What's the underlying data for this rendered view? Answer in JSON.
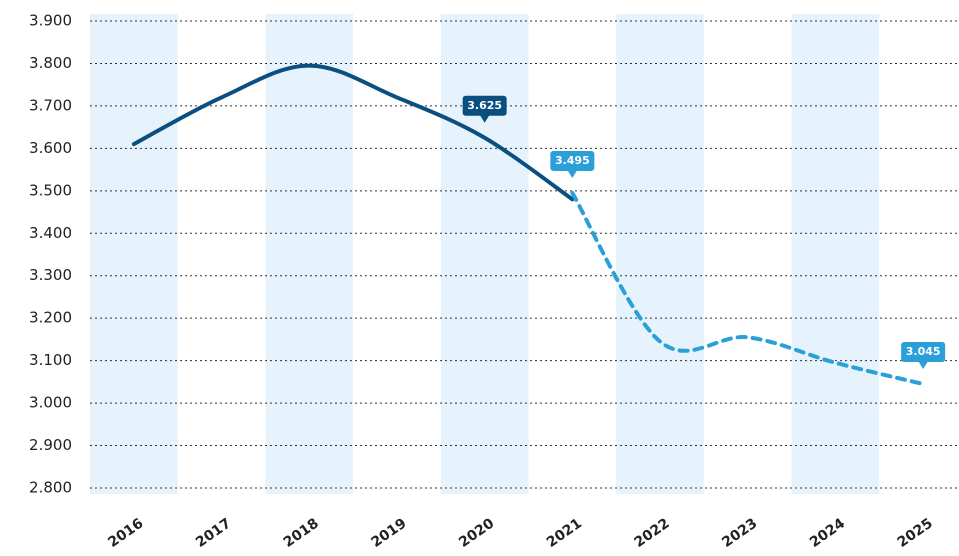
{
  "chart_data": {
    "type": "line",
    "categories": [
      "2016",
      "2017",
      "2018",
      "2019",
      "2020",
      "2021",
      "2022",
      "2023",
      "2024",
      "2025"
    ],
    "series": [
      {
        "color": "#0b4f80",
        "dashed": false,
        "values": [
          3610,
          3720,
          3795,
          3720,
          3625,
          3480,
          null,
          null,
          null,
          null
        ],
        "value_labels": [
          null,
          null,
          null,
          null,
          "3.625",
          null,
          null,
          null,
          null,
          null
        ]
      },
      {
        "color": "#2a9fd8",
        "dashed": true,
        "values": [
          null,
          null,
          null,
          null,
          null,
          3495,
          3145,
          3155,
          3095,
          3045
        ],
        "value_labels": [
          null,
          null,
          null,
          null,
          null,
          "3.495",
          null,
          null,
          null,
          "3.045"
        ]
      }
    ],
    "ylim": [
      2800,
      3900
    ],
    "yticks": [
      {
        "value": 2800,
        "label": "2.800"
      },
      {
        "value": 2900,
        "label": "2.900"
      },
      {
        "value": 3000,
        "label": "3.000"
      },
      {
        "value": 3100,
        "label": "3.100"
      },
      {
        "value": 3200,
        "label": "3.200"
      },
      {
        "value": 3300,
        "label": "3.300"
      },
      {
        "value": 3400,
        "label": "3.400"
      },
      {
        "value": 3500,
        "label": "3.500"
      },
      {
        "value": 3600,
        "label": "3.600"
      },
      {
        "value": 3700,
        "label": "3.700"
      },
      {
        "value": 3800,
        "label": "3.800"
      },
      {
        "value": 3900,
        "label": "3.900"
      }
    ],
    "grid": true,
    "band_shading": "#e6f3fc"
  }
}
